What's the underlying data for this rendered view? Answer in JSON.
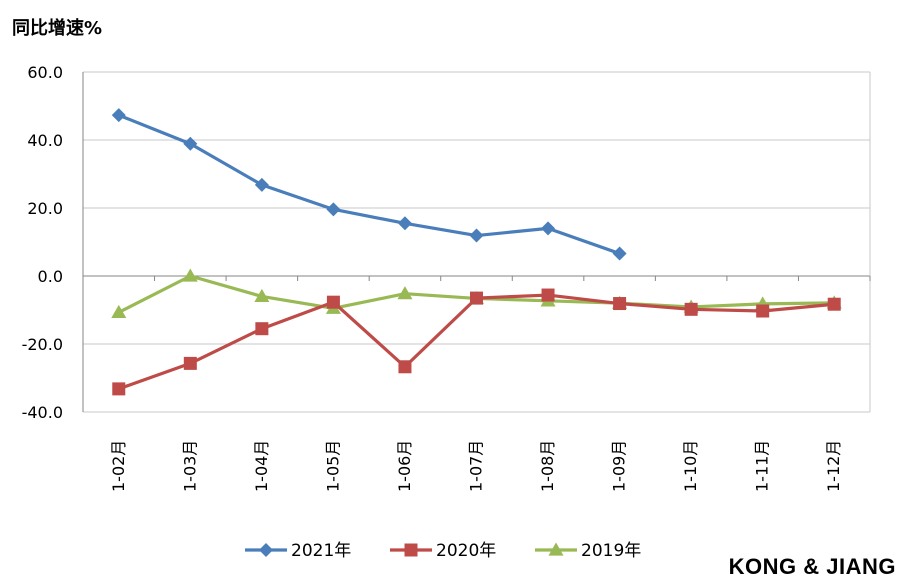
{
  "chart_data": {
    "type": "line",
    "title": "",
    "ylabel": "同比增速%",
    "xlabel": "",
    "categories": [
      "1-02月",
      "1-03月",
      "1-04月",
      "1-05月",
      "1-06月",
      "1-07月",
      "1-08月",
      "1-09月",
      "1-10月",
      "1-11月",
      "1-12月"
    ],
    "ylim": [
      -40,
      60
    ],
    "yticks": [
      "60.0",
      "40.0",
      "20.0",
      "0.0",
      "-20.0",
      "-40.0"
    ],
    "ytick_values": [
      60,
      40,
      20,
      0,
      -20,
      -40
    ],
    "grid": true,
    "legend_position": "bottom",
    "series": [
      {
        "name": "2021年",
        "marker": "diamond",
        "color": "#4a7ebb",
        "values": [
          47.3,
          38.9,
          26.8,
          19.6,
          15.5,
          11.9,
          14.0,
          6.6,
          null,
          null,
          null
        ]
      },
      {
        "name": "2020年",
        "marker": "square",
        "color": "#be4b48",
        "values": [
          -33.2,
          -25.7,
          -15.5,
          -7.7,
          -26.7,
          -6.5,
          -5.6,
          -8.1,
          -9.8,
          -10.3,
          -8.3
        ]
      },
      {
        "name": "2019年",
        "marker": "triangle",
        "color": "#98b954",
        "values": [
          -10.7,
          0.0,
          -6.0,
          -9.5,
          -5.2,
          -6.6,
          -7.3,
          -8.0,
          -9.1,
          -8.2,
          -7.9
        ]
      }
    ]
  },
  "watermark": "KONG & JIANG"
}
